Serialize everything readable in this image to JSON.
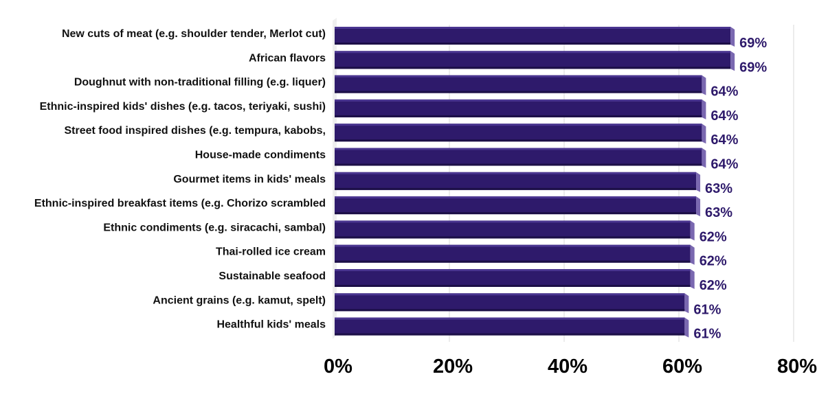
{
  "chart_data": {
    "type": "bar",
    "orientation": "horizontal",
    "categories": [
      "New cuts of meat (e.g. shoulder tender, Merlot cut)",
      "African flavors",
      "Doughnut with non-traditional filling (e.g. liquer)",
      "Ethnic-inspired kids' dishes (e.g. tacos, teriyaki, sushi)",
      "Street food inspired dishes (e.g. tempura, kabobs,",
      "House-made condiments",
      "Gourmet items in kids' meals",
      "Ethnic-inspired breakfast items (e.g. Chorizo scrambled",
      "Ethnic condiments (e.g. siracachi, sambal)",
      "Thai-rolled ice cream",
      "Sustainable seafood",
      "Ancient grains (e.g. kamut, spelt)",
      "Healthful kids' meals"
    ],
    "values": [
      69,
      69,
      64,
      64,
      64,
      64,
      63,
      63,
      62,
      62,
      62,
      61,
      61
    ],
    "data_labels": [
      "69%",
      "69%",
      "64%",
      "64%",
      "64%",
      "64%",
      "63%",
      "63%",
      "62%",
      "62%",
      "62%",
      "61%",
      "61%"
    ],
    "xticks": [
      "0%",
      "20%",
      "40%",
      "60%",
      "80%"
    ],
    "xlim": [
      0,
      80
    ],
    "grid": true,
    "legend": "none",
    "colors": {
      "bar_front": "#2e1a6b",
      "bar_top": "#4a3590",
      "bar_side": "#7a68b0",
      "bar_bottom": "#1c0f47",
      "label": "#2e1a6b",
      "grid": "#d9d9d9"
    }
  }
}
